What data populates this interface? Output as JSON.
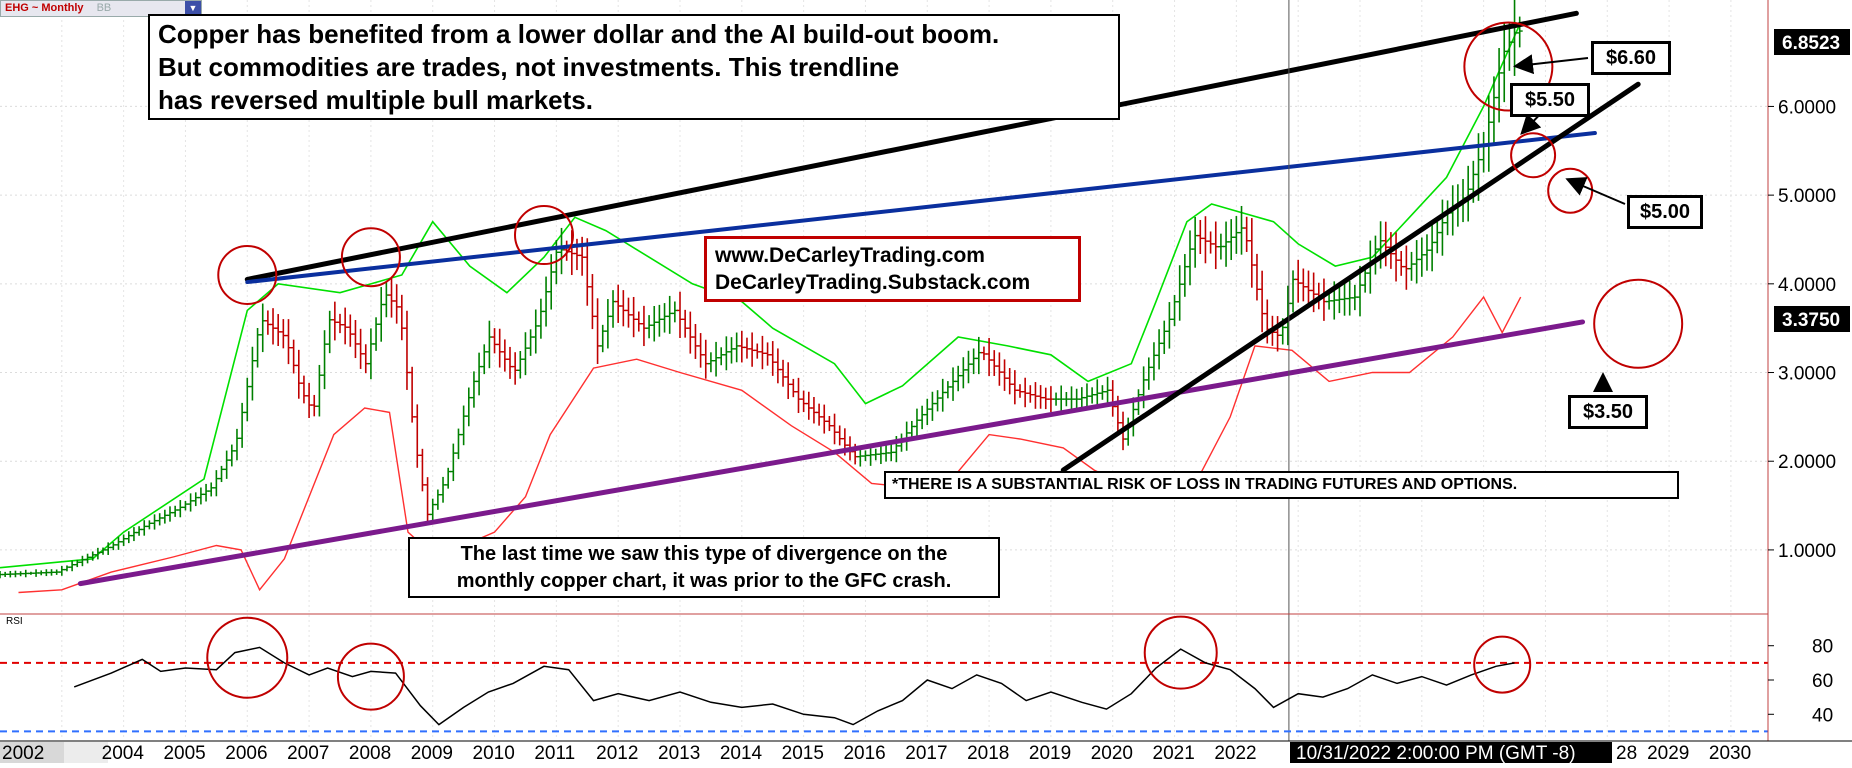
{
  "symbol_tag": {
    "symbol": "EHG ~ Monthly",
    "indicator": "BB"
  },
  "annotations": {
    "headline": "Copper has benefited from a lower dollar and the AI build-out boom.\n But commodities are trades, not investments. This trendline\nhas reversed multiple bull markets.",
    "website": "www.DeCarleyTrading.com\nDeCarleyTrading.Substack.com",
    "risk": "*THERE IS A SUBSTANTIAL RISK OF LOSS IN TRADING FUTURES AND OPTIONS.",
    "divergence": "The last time we saw this type of divergence on the\nmonthly copper chart, it was prior to the GFC crash.",
    "price_labels": {
      "p660": "$6.60",
      "p550": "$5.50",
      "p500": "$5.00",
      "p350": "$3.50"
    }
  },
  "axis": {
    "price_ticks": [
      "6.0000",
      "5.0000",
      "4.0000",
      "3.0000",
      "2.0000",
      "1.0000"
    ],
    "last_price": "6.8523",
    "cursor_price": "3.3750",
    "rsi_label": "RSI",
    "rsi_ticks": [
      "80",
      "60",
      "40"
    ],
    "years": [
      "2002",
      "2004",
      "2005",
      "2006",
      "2007",
      "2008",
      "2009",
      "2010",
      "2011",
      "2012",
      "2013",
      "2014",
      "2015",
      "2016",
      "2017",
      "2018",
      "2019",
      "2020",
      "2021",
      "2022",
      "28",
      "2029",
      "2030"
    ],
    "cursor_timestamp": "10/31/2022 2:00:00 PM (GMT -8)"
  },
  "colors": {
    "up_bar": "#008000",
    "down_bar": "#c00000",
    "bb_upper": "#00e000",
    "bb_lower": "#ff3030",
    "resistance": "#000000",
    "mid_trend": "#0a2f9e",
    "support": "#7b1a8c",
    "circle": "#c00000",
    "rsi_line": "#000000",
    "rsi_80": "#e00000",
    "rsi_30": "#3070ff"
  },
  "chart_data": {
    "type": "bar",
    "title": "EHG ~ Monthly",
    "price_axis": {
      "ylim": [
        0.3,
        7.2
      ]
    },
    "time_axis": {
      "xlim": [
        2002.0,
        2030.6
      ]
    },
    "ohlc_anchors": [
      [
        2002.0,
        0.72
      ],
      [
        2003.0,
        0.75
      ],
      [
        2003.9,
        1.05
      ],
      [
        2004.5,
        1.3
      ],
      [
        2005.0,
        1.48
      ],
      [
        2005.5,
        1.7
      ],
      [
        2005.9,
        2.2
      ],
      [
        2006.3,
        3.6
      ],
      [
        2006.7,
        3.4
      ],
      [
        2006.95,
        2.8
      ],
      [
        2007.15,
        2.55
      ],
      [
        2007.4,
        3.6
      ],
      [
        2007.7,
        3.5
      ],
      [
        2008.0,
        3.1
      ],
      [
        2008.3,
        3.9
      ],
      [
        2008.55,
        3.7
      ],
      [
        2008.8,
        2.2
      ],
      [
        2009.0,
        1.4
      ],
      [
        2009.3,
        1.8
      ],
      [
        2009.7,
        2.8
      ],
      [
        2010.0,
        3.4
      ],
      [
        2010.4,
        3.0
      ],
      [
        2010.8,
        3.6
      ],
      [
        2011.1,
        4.4
      ],
      [
        2011.5,
        4.3
      ],
      [
        2011.75,
        3.3
      ],
      [
        2012.0,
        3.8
      ],
      [
        2012.5,
        3.5
      ],
      [
        2013.0,
        3.7
      ],
      [
        2013.5,
        3.1
      ],
      [
        2014.0,
        3.3
      ],
      [
        2014.5,
        3.2
      ],
      [
        2015.0,
        2.7
      ],
      [
        2015.5,
        2.4
      ],
      [
        2015.9,
        2.05
      ],
      [
        2016.5,
        2.1
      ],
      [
        2016.9,
        2.45
      ],
      [
        2017.5,
        2.9
      ],
      [
        2017.95,
        3.25
      ],
      [
        2018.5,
        2.8
      ],
      [
        2019.0,
        2.7
      ],
      [
        2019.5,
        2.7
      ],
      [
        2020.0,
        2.8
      ],
      [
        2020.25,
        2.25
      ],
      [
        2020.6,
        2.95
      ],
      [
        2021.0,
        3.6
      ],
      [
        2021.4,
        4.55
      ],
      [
        2021.8,
        4.4
      ],
      [
        2022.2,
        4.65
      ],
      [
        2022.55,
        3.5
      ],
      [
        2022.8,
        3.4
      ],
      [
        2023.0,
        4.05
      ],
      [
        2023.5,
        3.8
      ],
      [
        2024.0,
        3.85
      ],
      [
        2024.4,
        4.5
      ],
      [
        2024.8,
        4.15
      ],
      [
        2025.2,
        4.4
      ],
      [
        2025.5,
        4.8
      ],
      [
        2025.8,
        5.0
      ],
      [
        2026.1,
        5.6
      ],
      [
        2026.4,
        6.6
      ],
      [
        2026.6,
        6.85
      ]
    ],
    "bb_upper_anchors": [
      [
        2002.0,
        0.8
      ],
      [
        2003.5,
        0.9
      ],
      [
        2004.0,
        1.2
      ],
      [
        2005.3,
        1.8
      ],
      [
        2006.0,
        3.7
      ],
      [
        2006.5,
        4.0
      ],
      [
        2007.5,
        3.9
      ],
      [
        2008.5,
        4.1
      ],
      [
        2009.0,
        4.7
      ],
      [
        2009.6,
        4.2
      ],
      [
        2010.2,
        3.9
      ],
      [
        2010.8,
        4.3
      ],
      [
        2011.3,
        4.75
      ],
      [
        2011.8,
        4.6
      ],
      [
        2012.5,
        4.3
      ],
      [
        2013.2,
        4.0
      ],
      [
        2014.0,
        3.8
      ],
      [
        2014.5,
        3.5
      ],
      [
        2015.5,
        3.1
      ],
      [
        2016.0,
        2.65
      ],
      [
        2016.6,
        2.85
      ],
      [
        2017.5,
        3.4
      ],
      [
        2018.3,
        3.3
      ],
      [
        2019.0,
        3.2
      ],
      [
        2019.6,
        2.9
      ],
      [
        2020.3,
        3.1
      ],
      [
        2020.7,
        3.8
      ],
      [
        2021.2,
        4.7
      ],
      [
        2021.6,
        4.9
      ],
      [
        2022.1,
        4.8
      ],
      [
        2022.6,
        4.7
      ],
      [
        2023.0,
        4.45
      ],
      [
        2023.6,
        4.2
      ],
      [
        2024.2,
        4.3
      ],
      [
        2024.8,
        4.75
      ],
      [
        2025.4,
        5.2
      ],
      [
        2026.0,
        6.0
      ],
      [
        2026.6,
        6.95
      ]
    ],
    "bb_lower_anchors": [
      [
        2002.3,
        0.52
      ],
      [
        2003.0,
        0.55
      ],
      [
        2003.8,
        0.75
      ],
      [
        2004.8,
        0.92
      ],
      [
        2005.5,
        1.05
      ],
      [
        2005.9,
        1.0
      ],
      [
        2006.2,
        0.55
      ],
      [
        2006.6,
        0.9
      ],
      [
        2007.4,
        2.3
      ],
      [
        2007.9,
        2.6
      ],
      [
        2008.3,
        2.55
      ],
      [
        2008.6,
        1.2
      ],
      [
        2009.0,
        0.95
      ],
      [
        2009.5,
        1.05
      ],
      [
        2010.0,
        1.2
      ],
      [
        2010.5,
        1.6
      ],
      [
        2010.9,
        2.3
      ],
      [
        2011.6,
        3.05
      ],
      [
        2012.3,
        3.15
      ],
      [
        2013.0,
        3.0
      ],
      [
        2014.0,
        2.8
      ],
      [
        2014.8,
        2.4
      ],
      [
        2015.5,
        2.1
      ],
      [
        2016.1,
        1.75
      ],
      [
        2016.8,
        1.7
      ],
      [
        2017.4,
        1.8
      ],
      [
        2018.0,
        2.3
      ],
      [
        2018.5,
        2.25
      ],
      [
        2019.2,
        2.15
      ],
      [
        2019.7,
        1.9
      ],
      [
        2020.3,
        1.7
      ],
      [
        2020.8,
        1.75
      ],
      [
        2021.3,
        1.7
      ],
      [
        2021.9,
        2.5
      ],
      [
        2022.3,
        3.3
      ],
      [
        2022.9,
        3.25
      ],
      [
        2023.5,
        2.9
      ],
      [
        2024.2,
        3.0
      ],
      [
        2024.8,
        3.0
      ],
      [
        2025.5,
        3.4
      ],
      [
        2026.0,
        3.85
      ],
      [
        2026.3,
        3.45
      ],
      [
        2026.6,
        3.85
      ]
    ],
    "trendlines": [
      {
        "name": "resistance",
        "from": [
          2006.0,
          4.05
        ],
        "to": [
          2027.5,
          7.05
        ]
      },
      {
        "name": "mid",
        "from": [
          2006.0,
          4.02
        ],
        "to": [
          2027.8,
          5.7
        ]
      },
      {
        "name": "support",
        "from": [
          2003.3,
          0.62
        ],
        "to": [
          2027.6,
          3.57
        ]
      },
      {
        "name": "rising",
        "from": [
          2019.2,
          1.9
        ],
        "to": [
          2028.5,
          6.25
        ]
      }
    ],
    "highlight_circles": [
      {
        "x": 2006.0,
        "y": 4.1
      },
      {
        "x": 2008.0,
        "y": 4.3
      },
      {
        "x": 2010.8,
        "y": 4.55
      },
      {
        "x": 2026.4,
        "y": 6.45
      },
      {
        "x": 2026.8,
        "y": 5.45
      },
      {
        "x": 2027.4,
        "y": 5.05
      },
      {
        "x": 2028.5,
        "y": 3.55
      }
    ],
    "rsi": {
      "ylim": [
        25,
        95
      ],
      "overbought": 70,
      "oversold": 30,
      "anchors": [
        [
          2003.2,
          56
        ],
        [
          2003.8,
          64
        ],
        [
          2004.3,
          72
        ],
        [
          2004.6,
          65
        ],
        [
          2005.0,
          67
        ],
        [
          2005.5,
          66
        ],
        [
          2005.8,
          76
        ],
        [
          2006.2,
          79
        ],
        [
          2006.6,
          70
        ],
        [
          2007.0,
          63
        ],
        [
          2007.3,
          67
        ],
        [
          2007.7,
          62
        ],
        [
          2008.0,
          65
        ],
        [
          2008.4,
          64
        ],
        [
          2008.8,
          45
        ],
        [
          2009.1,
          34
        ],
        [
          2009.5,
          44
        ],
        [
          2009.9,
          53
        ],
        [
          2010.3,
          58
        ],
        [
          2010.8,
          68
        ],
        [
          2011.2,
          66
        ],
        [
          2011.6,
          48
        ],
        [
          2012.0,
          52
        ],
        [
          2012.5,
          48
        ],
        [
          2013.0,
          53
        ],
        [
          2013.5,
          47
        ],
        [
          2014.0,
          44
        ],
        [
          2014.5,
          46
        ],
        [
          2015.0,
          40
        ],
        [
          2015.5,
          38
        ],
        [
          2015.8,
          34
        ],
        [
          2016.2,
          42
        ],
        [
          2016.6,
          48
        ],
        [
          2017.0,
          60
        ],
        [
          2017.4,
          55
        ],
        [
          2017.8,
          63
        ],
        [
          2018.2,
          58
        ],
        [
          2018.6,
          48
        ],
        [
          2019.0,
          53
        ],
        [
          2019.5,
          47
        ],
        [
          2019.9,
          43
        ],
        [
          2020.3,
          52
        ],
        [
          2020.7,
          67
        ],
        [
          2021.1,
          78
        ],
        [
          2021.5,
          70
        ],
        [
          2021.9,
          66
        ],
        [
          2022.3,
          55
        ],
        [
          2022.6,
          44
        ],
        [
          2023.0,
          52
        ],
        [
          2023.4,
          50
        ],
        [
          2023.8,
          55
        ],
        [
          2024.2,
          63
        ],
        [
          2024.6,
          58
        ],
        [
          2025.0,
          62
        ],
        [
          2025.4,
          57
        ],
        [
          2025.8,
          63
        ],
        [
          2026.2,
          68
        ],
        [
          2026.5,
          70
        ]
      ]
    }
  }
}
